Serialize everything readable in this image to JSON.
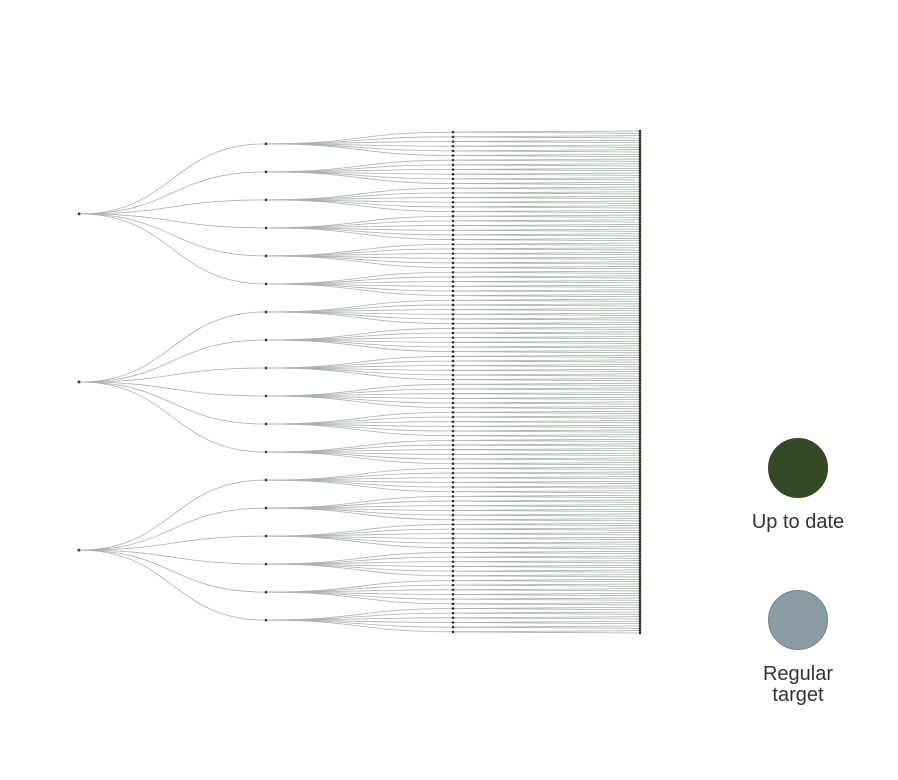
{
  "legend": {
    "items": [
      {
        "label": "Up to date",
        "color": "#344a25"
      },
      {
        "label": "Regular target",
        "color": "#8a9da3"
      }
    ]
  },
  "tree": {
    "root_count": 3,
    "children_per_root": 6,
    "grandchildren_per_child": 6,
    "leaves_per_grandchild": 2,
    "colors": {
      "link": "#a9b3a9",
      "node": "#2b3a22"
    }
  }
}
